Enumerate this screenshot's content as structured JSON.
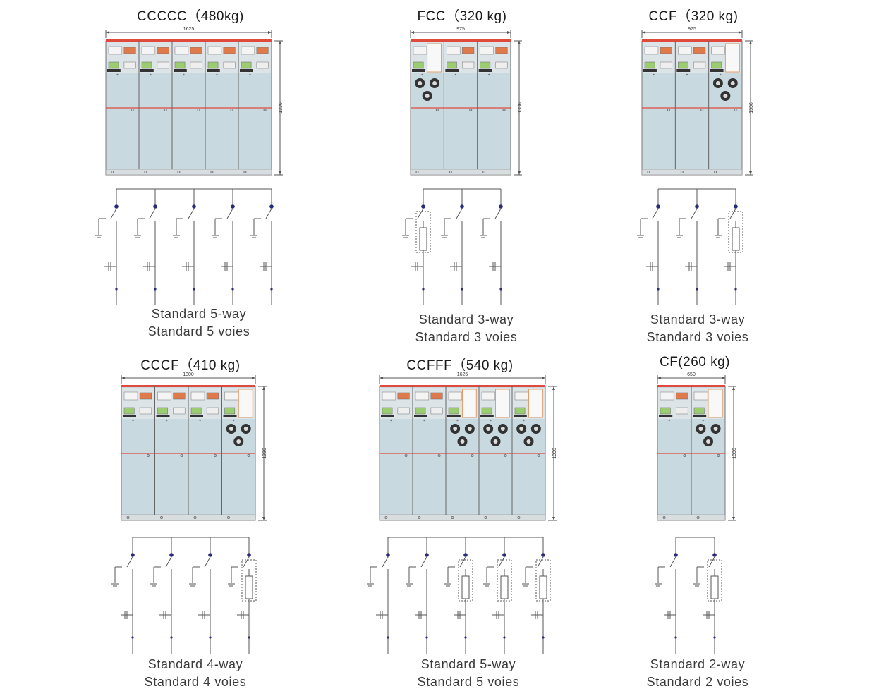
{
  "panels": [
    {
      "title": "CCCCC（480kg)",
      "width_label": "1625",
      "height_label": "1336",
      "units": "CCCCC",
      "caption_en": "Standard 5-way",
      "caption_fr": "Standard 5 voies"
    },
    {
      "title": "FCC（320 kg)",
      "width_label": "975",
      "height_label": "1336",
      "units": "FCC",
      "caption_en": "Standard 3-way",
      "caption_fr": "Standard 3 voies"
    },
    {
      "title": "CCF（320 kg)",
      "width_label": "975",
      "height_label": "1336",
      "units": "CCF",
      "caption_en": "Standard 3-way",
      "caption_fr": "Standard 3 voies"
    },
    {
      "title": "CCCF（410 kg)",
      "width_label": "1300",
      "height_label": "1336",
      "units": "CCCF",
      "caption_en": "Standard 4-way",
      "caption_fr": "Standard 4 voies"
    },
    {
      "title": "CCFFF（540 kg)",
      "width_label": "1625",
      "height_label": "1336",
      "units": "CCFFF",
      "caption_en": "Standard 5-way",
      "caption_fr": "Standard 5 voies"
    },
    {
      "title": "CF(260 kg)",
      "width_label": "650",
      "height_label": "1336",
      "units": "CF",
      "caption_en": "Standard 2-way",
      "caption_fr": "Standard 2 voies"
    }
  ],
  "colors": {
    "cabinet_fill": "#c9d9e0",
    "cabinet_top": "#dde4e8",
    "red_line": "#e04a3c",
    "line": "#555555",
    "node": "#2a2a7a"
  }
}
